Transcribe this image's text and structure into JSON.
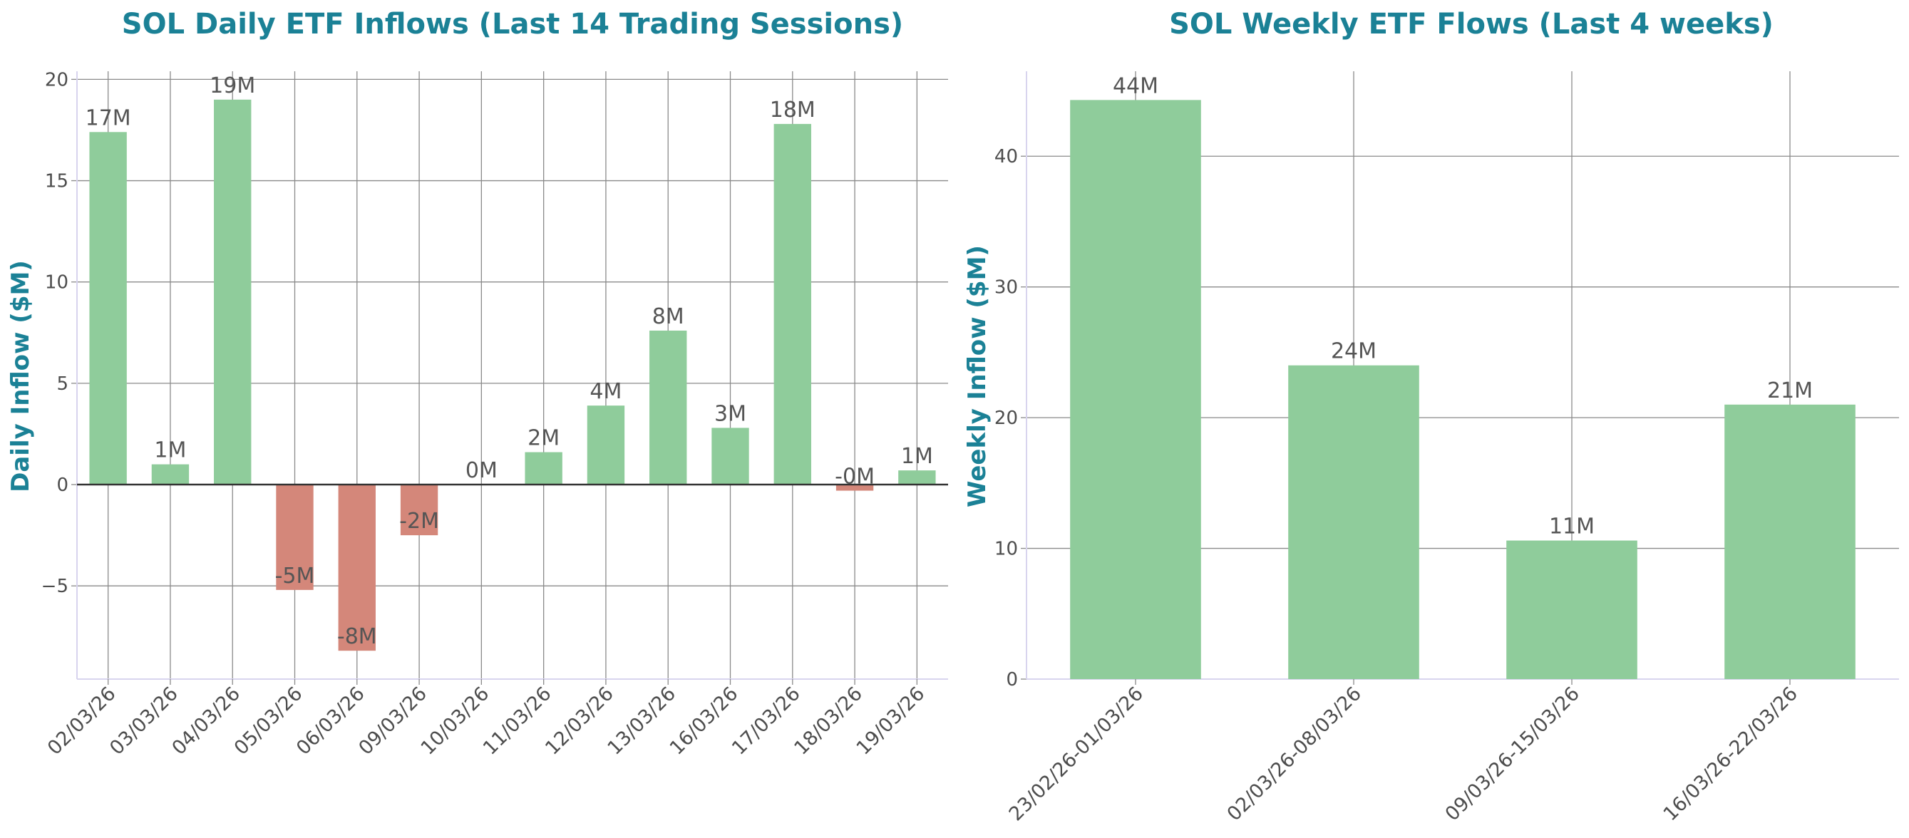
{
  "colors": {
    "title": "#1b8196",
    "positive": "#8fcc9b",
    "negative": "#d4877a",
    "grid": "#8a8a8a",
    "text": "#4d4d4d"
  },
  "chart_data": [
    {
      "type": "bar",
      "title": "SOL Daily ETF Inflows (Last 14 Trading Sessions)",
      "xlabel": "",
      "ylabel": "Daily Inflow ($M)",
      "ylim": [
        -9.6,
        20.4
      ],
      "yticks": [
        -5,
        0,
        5,
        10,
        15,
        20
      ],
      "ytick_labels": [
        "−5",
        "0",
        "5",
        "10",
        "15",
        "20"
      ],
      "grid": true,
      "categories": [
        "02/03/26",
        "03/03/26",
        "04/03/26",
        "05/03/26",
        "06/03/26",
        "09/03/26",
        "10/03/26",
        "11/03/26",
        "12/03/26",
        "13/03/26",
        "16/03/26",
        "17/03/26",
        "18/03/26",
        "19/03/26"
      ],
      "values": [
        17.4,
        1.0,
        19.0,
        -5.2,
        -8.2,
        -2.5,
        0.0,
        1.6,
        3.9,
        7.6,
        2.8,
        17.8,
        -0.3,
        0.7
      ],
      "data_labels": [
        "17M",
        "1M",
        "19M",
        "-5M",
        "-8M",
        "-2M",
        "0M",
        "2M",
        "4M",
        "8M",
        "3M",
        "18M",
        "-0M",
        "1M"
      ]
    },
    {
      "type": "bar",
      "title": "SOL Weekly ETF Flows (Last 4 weeks)",
      "xlabel": "",
      "ylabel": "Weekly Inflow ($M)",
      "ylim": [
        0,
        46.5
      ],
      "yticks": [
        0,
        10,
        20,
        30,
        40
      ],
      "ytick_labels": [
        "0",
        "10",
        "20",
        "30",
        "40"
      ],
      "grid": true,
      "categories": [
        "23/02/26-01/03/26",
        "02/03/26-08/03/26",
        "09/03/26-15/03/26",
        "16/03/26-22/03/26"
      ],
      "values": [
        44.3,
        24.0,
        10.6,
        21.0
      ],
      "data_labels": [
        "44M",
        "24M",
        "11M",
        "21M"
      ]
    }
  ]
}
